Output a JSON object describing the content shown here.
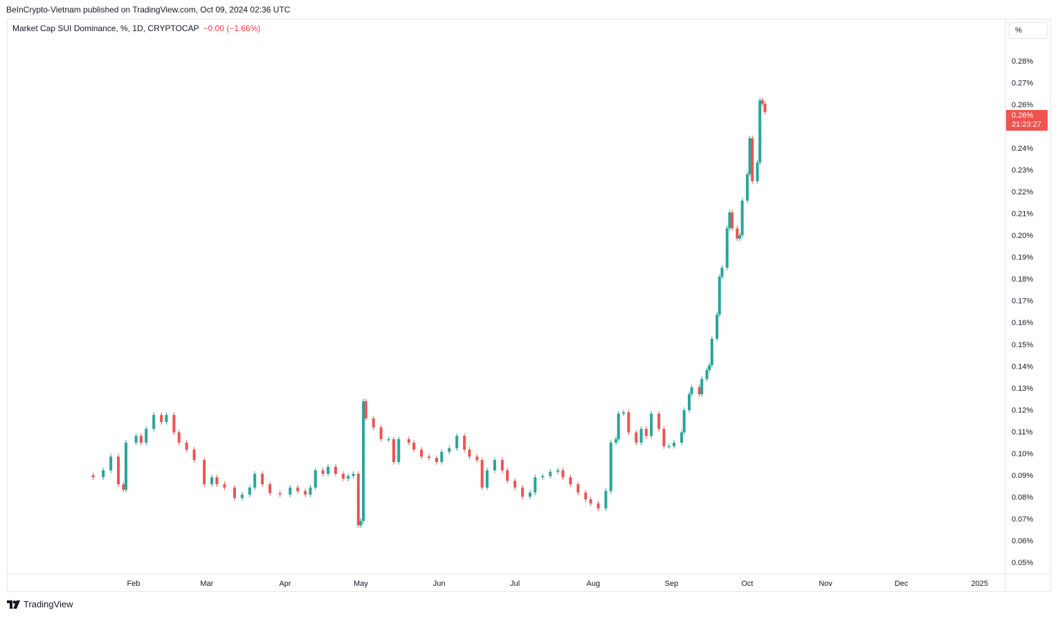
{
  "header": {
    "published": "BeInCrypto-Vietnam published on TradingView.com, Oct 09, 2024 02:36 UTC"
  },
  "legend": {
    "symbol": "Market Cap SUI Dominance, %, 1D, CRYPTOCAP",
    "change": "−0.00 (−1.66%)"
  },
  "scale_mode": "%",
  "last_price": {
    "value": "0.26%",
    "countdown": "21:23:27"
  },
  "footer": {
    "brand": "TradingView"
  },
  "colors": {
    "up": "#26a69a",
    "down": "#ef5350",
    "last": "#f05350"
  },
  "chart_data": {
    "type": "candlestick",
    "title": "Market Cap SUI Dominance, %, 1D, CRYPTOCAP",
    "xlabel": "",
    "ylabel": "%",
    "ylim": [
      0.045,
      0.29
    ],
    "xlim_day_of_year": [
      1,
      380
    ],
    "grid": false,
    "y_ticks": [
      {
        "v": 0.28,
        "label": "0.28%"
      },
      {
        "v": 0.27,
        "label": "0.27%"
      },
      {
        "v": 0.26,
        "label": "0.26%"
      },
      {
        "v": 0.24,
        "label": "0.24%"
      },
      {
        "v": 0.23,
        "label": "0.23%"
      },
      {
        "v": 0.22,
        "label": "0.22%"
      },
      {
        "v": 0.21,
        "label": "0.21%"
      },
      {
        "v": 0.2,
        "label": "0.20%"
      },
      {
        "v": 0.19,
        "label": "0.19%"
      },
      {
        "v": 0.18,
        "label": "0.18%"
      },
      {
        "v": 0.17,
        "label": "0.17%"
      },
      {
        "v": 0.16,
        "label": "0.16%"
      },
      {
        "v": 0.15,
        "label": "0.15%"
      },
      {
        "v": 0.14,
        "label": "0.14%"
      },
      {
        "v": 0.13,
        "label": "0.13%"
      },
      {
        "v": 0.12,
        "label": "0.12%"
      },
      {
        "v": 0.11,
        "label": "0.11%"
      },
      {
        "v": 0.1,
        "label": "0.10%"
      },
      {
        "v": 0.09,
        "label": "0.09%"
      },
      {
        "v": 0.08,
        "label": "0.08%"
      },
      {
        "v": 0.07,
        "label": "0.07%"
      },
      {
        "v": 0.06,
        "label": "0.06%"
      },
      {
        "v": 0.05,
        "label": "0.05%"
      }
    ],
    "x_ticks": [
      {
        "t": 32,
        "label": "Feb"
      },
      {
        "t": 61,
        "label": "Mar"
      },
      {
        "t": 92,
        "label": "Apr"
      },
      {
        "t": 122,
        "label": "May"
      },
      {
        "t": 153,
        "label": "Jun"
      },
      {
        "t": 183,
        "label": "Jul"
      },
      {
        "t": 214,
        "label": "Aug"
      },
      {
        "t": 245,
        "label": "Sep"
      },
      {
        "t": 275,
        "label": "Oct"
      },
      {
        "t": 306,
        "label": "Nov"
      },
      {
        "t": 336,
        "label": "Dec"
      },
      {
        "t": 367,
        "label": "2025"
      }
    ],
    "candles_day_close": [
      [
        16,
        0.089
      ],
      [
        20,
        0.0922
      ],
      [
        23,
        0.0985
      ],
      [
        26,
        0.0858
      ],
      [
        28,
        0.0833
      ],
      [
        29,
        0.1049
      ],
      [
        33,
        0.108
      ],
      [
        35,
        0.1049
      ],
      [
        37,
        0.1112
      ],
      [
        40,
        0.1176
      ],
      [
        43,
        0.1144
      ],
      [
        45,
        0.1176
      ],
      [
        48,
        0.1096
      ],
      [
        50,
        0.1049
      ],
      [
        53,
        0.1017
      ],
      [
        56,
        0.0969
      ],
      [
        60,
        0.0858
      ],
      [
        63,
        0.089
      ],
      [
        65,
        0.0858
      ],
      [
        68,
        0.0843
      ],
      [
        72,
        0.0795
      ],
      [
        75,
        0.0811
      ],
      [
        78,
        0.0843
      ],
      [
        80,
        0.0906
      ],
      [
        83,
        0.0858
      ],
      [
        86,
        0.0817
      ],
      [
        90,
        0.0811
      ],
      [
        94,
        0.0843
      ],
      [
        97,
        0.0827
      ],
      [
        100,
        0.0811
      ],
      [
        102,
        0.0843
      ],
      [
        104,
        0.0922
      ],
      [
        107,
        0.0906
      ],
      [
        109,
        0.0938
      ],
      [
        112,
        0.0906
      ],
      [
        115,
        0.0884
      ],
      [
        117,
        0.0896
      ],
      [
        119,
        0.0906
      ],
      [
        121,
        0.067
      ],
      [
        122,
        0.069
      ],
      [
        123,
        0.1239
      ],
      [
        124,
        0.116
      ],
      [
        127,
        0.1119
      ],
      [
        130,
        0.1065
      ],
      [
        133,
        0.1065
      ],
      [
        135,
        0.096
      ],
      [
        137,
        0.1065
      ],
      [
        141,
        0.1049
      ],
      [
        143,
        0.1017
      ],
      [
        146,
        0.0985
      ],
      [
        149,
        0.0979
      ],
      [
        152,
        0.096
      ],
      [
        154,
        0.1007
      ],
      [
        157,
        0.1023
      ],
      [
        160,
        0.108
      ],
      [
        163,
        0.1017
      ],
      [
        165,
        0.0985
      ],
      [
        168,
        0.0969
      ],
      [
        170,
        0.0843
      ],
      [
        172,
        0.0922
      ],
      [
        175,
        0.0969
      ],
      [
        178,
        0.0922
      ],
      [
        180,
        0.0874
      ],
      [
        183,
        0.0843
      ],
      [
        186,
        0.0801
      ],
      [
        189,
        0.082
      ],
      [
        191,
        0.089
      ],
      [
        194,
        0.0896
      ],
      [
        197,
        0.0915
      ],
      [
        200,
        0.0922
      ],
      [
        202,
        0.089
      ],
      [
        205,
        0.0858
      ],
      [
        208,
        0.082
      ],
      [
        211,
        0.0789
      ],
      [
        213,
        0.077
      ],
      [
        216,
        0.0747
      ],
      [
        219,
        0.0827
      ],
      [
        221,
        0.1049
      ],
      [
        223,
        0.1065
      ],
      [
        224,
        0.1182
      ],
      [
        226,
        0.1188
      ],
      [
        228,
        0.1096
      ],
      [
        231,
        0.1049
      ],
      [
        233,
        0.1112
      ],
      [
        235,
        0.108
      ],
      [
        237,
        0.1182
      ],
      [
        240,
        0.1112
      ],
      [
        242,
        0.1033
      ],
      [
        244,
        0.1033
      ],
      [
        246,
        0.1049
      ],
      [
        249,
        0.1096
      ],
      [
        250,
        0.1198
      ],
      [
        252,
        0.1271
      ],
      [
        253,
        0.1303
      ],
      [
        256,
        0.1271
      ],
      [
        257,
        0.1341
      ],
      [
        259,
        0.1382
      ],
      [
        260,
        0.1404
      ],
      [
        261,
        0.1525
      ],
      [
        263,
        0.1636
      ],
      [
        264,
        0.181
      ],
      [
        265,
        0.1851
      ],
      [
        267,
        0.2032
      ],
      [
        268,
        0.2105
      ],
      [
        269,
        0.2032
      ],
      [
        271,
        0.1985
      ],
      [
        272,
        0.2
      ],
      [
        273,
        0.2159
      ],
      [
        275,
        0.228
      ],
      [
        276,
        0.2445
      ],
      [
        277,
        0.2248
      ],
      [
        279,
        0.2334
      ],
      [
        280,
        0.2619
      ],
      [
        281,
        0.2603
      ],
      [
        282,
        0.2565
      ]
    ]
  }
}
